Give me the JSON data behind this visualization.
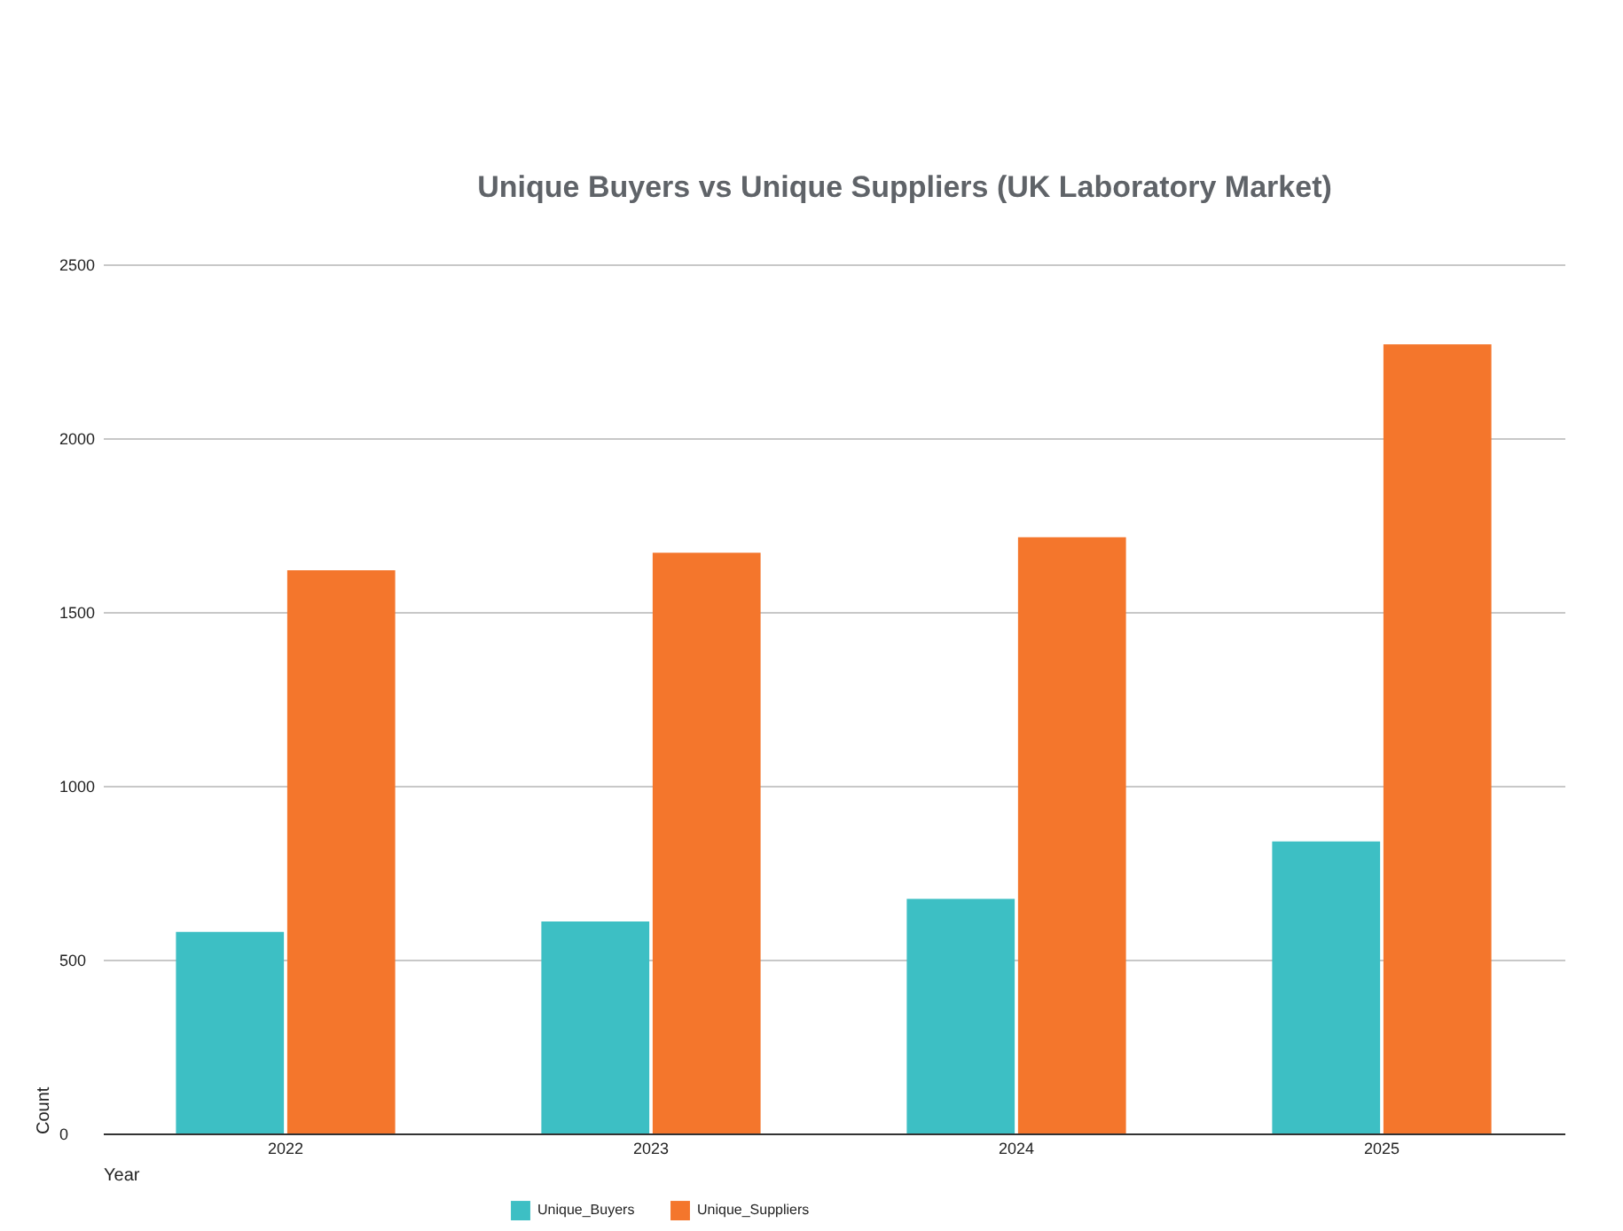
{
  "chart_data": {
    "type": "bar",
    "title": "Unique Buyers vs Unique Suppliers (UK Laboratory Market)",
    "xlabel": "Year",
    "ylabel": "Count",
    "categories": [
      "2022",
      "2023",
      "2024",
      "2025"
    ],
    "series": [
      {
        "name": "Unique_Buyers",
        "color": "#3dbfc4",
        "values": [
          580,
          610,
          675,
          840
        ]
      },
      {
        "name": "Unique_Suppliers",
        "color": "#f4762c",
        "values": [
          1620,
          1670,
          1715,
          2270
        ]
      }
    ],
    "ylim": [
      0,
      2500
    ],
    "yticks": [
      0,
      500,
      1000,
      1500,
      2000,
      2500
    ],
    "grid": true,
    "legend": "bottom"
  }
}
